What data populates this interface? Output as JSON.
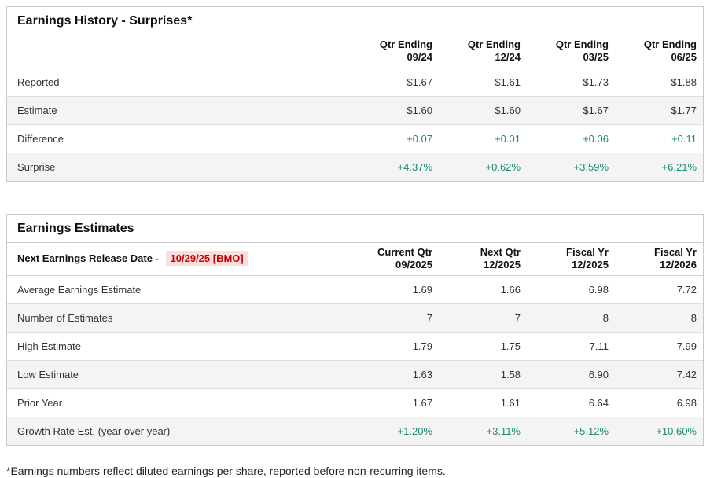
{
  "colors": {
    "positive_green": "#1d8a74",
    "alert_red": "#cc0000",
    "alert_red_bg": "#fbdfdf",
    "stripe_gray": "#f4f4f4",
    "border_gray": "#c9c9c9"
  },
  "history": {
    "title": "Earnings History - Surprises*",
    "columns": [
      {
        "line1": "Qtr Ending",
        "line2": "09/24"
      },
      {
        "line1": "Qtr Ending",
        "line2": "12/24"
      },
      {
        "line1": "Qtr Ending",
        "line2": "03/25"
      },
      {
        "line1": "Qtr Ending",
        "line2": "06/25"
      }
    ],
    "rows": [
      {
        "label": "Reported",
        "values": [
          "$1.67",
          "$1.61",
          "$1.73",
          "$1.88"
        ],
        "positive": false
      },
      {
        "label": "Estimate",
        "values": [
          "$1.60",
          "$1.60",
          "$1.67",
          "$1.77"
        ],
        "positive": false
      },
      {
        "label": "Difference",
        "values": [
          "+0.07",
          "+0.01",
          "+0.06",
          "+0.11"
        ],
        "positive": true
      },
      {
        "label": "Surprise",
        "values": [
          "+4.37%",
          "+0.62%",
          "+3.59%",
          "+6.21%"
        ],
        "positive": true
      }
    ]
  },
  "estimates": {
    "title": "Earnings Estimates",
    "release_date_label": "Next Earnings Release Date - ",
    "release_date_value": "10/29/25 [BMO]",
    "columns": [
      {
        "line1": "Current Qtr",
        "line2": "09/2025"
      },
      {
        "line1": "Next Qtr",
        "line2": "12/2025"
      },
      {
        "line1": "Fiscal Yr",
        "line2": "12/2025"
      },
      {
        "line1": "Fiscal Yr",
        "line2": "12/2026"
      }
    ],
    "rows": [
      {
        "label": "Average Earnings Estimate",
        "values": [
          "1.69",
          "1.66",
          "6.98",
          "7.72"
        ],
        "positive": false
      },
      {
        "label": "Number of Estimates",
        "values": [
          "7",
          "7",
          "8",
          "8"
        ],
        "positive": false
      },
      {
        "label": "High Estimate",
        "values": [
          "1.79",
          "1.75",
          "7.11",
          "7.99"
        ],
        "positive": false
      },
      {
        "label": "Low Estimate",
        "values": [
          "1.63",
          "1.58",
          "6.90",
          "7.42"
        ],
        "positive": false
      },
      {
        "label": "Prior Year",
        "values": [
          "1.67",
          "1.61",
          "6.64",
          "6.98"
        ],
        "positive": false
      },
      {
        "label": "Growth Rate Est. (year over year)",
        "values": [
          "+1.20%",
          "+3.11%",
          "+5.12%",
          "+10.60%"
        ],
        "positive": true
      }
    ]
  },
  "footnote": "*Earnings numbers reflect diluted earnings per share, reported before non-recurring items."
}
